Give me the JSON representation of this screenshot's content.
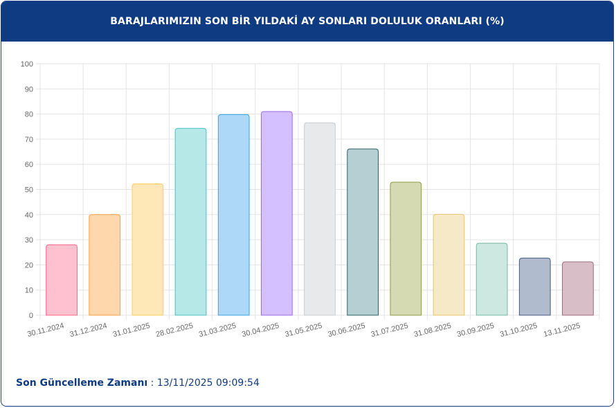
{
  "header": {
    "title": "BARAJLARIMIZIN SON BİR YILDAKİ AY SONLARI DOLULUK ORANLARI (%)"
  },
  "footer": {
    "label": "Son Güncelleme Zamanı",
    "separator": " : ",
    "value": "13/11/2025 09:09:54"
  },
  "chart_data": {
    "type": "bar",
    "title": "BARAJLARIMIZIN SON BİR YILDAKİ AY SONLARI DOLULUK ORANLARI (%)",
    "xlabel": "",
    "ylabel": "",
    "ylim": [
      0,
      100
    ],
    "yticks": [
      "0",
      "10",
      "20",
      "30",
      "40",
      "50",
      "60",
      "70",
      "80",
      "90",
      "100"
    ],
    "grid": true,
    "legend": "none",
    "categories": [
      "30.11.2024",
      "31.12.2024",
      "31.01.2025",
      "28.02.2025",
      "31.03.2025",
      "30.04.2025",
      "31.05.2025",
      "30.06.2025",
      "31.07.2025",
      "31.08.2025",
      "30.09.2025",
      "31.10.2025",
      "13.11.2025"
    ],
    "values": [
      28.0,
      40.0,
      52.2,
      74.3,
      79.8,
      81.0,
      76.5,
      66.1,
      52.9,
      40.1,
      28.6,
      22.7,
      21.2
    ],
    "fill_colors": [
      "#ffc1cf",
      "#ffd7ad",
      "#ffe8b8",
      "#b6e8e8",
      "#add8f7",
      "#d5c0ff",
      "#e8e9eb",
      "#b6cfd2",
      "#d5dab3",
      "#f6e9c8",
      "#cce8e1",
      "#b0bbcd",
      "#d8bfc7"
    ],
    "border_colors": [
      "#ff6384",
      "#ff9f40",
      "#ffcd56",
      "#4bc0c0",
      "#36a2eb",
      "#9966ff",
      "#c9cbcf",
      "#2f5d62",
      "#8f9a3c",
      "#e8c26a",
      "#74b8a5",
      "#465a7e",
      "#9b6b7a"
    ]
  }
}
